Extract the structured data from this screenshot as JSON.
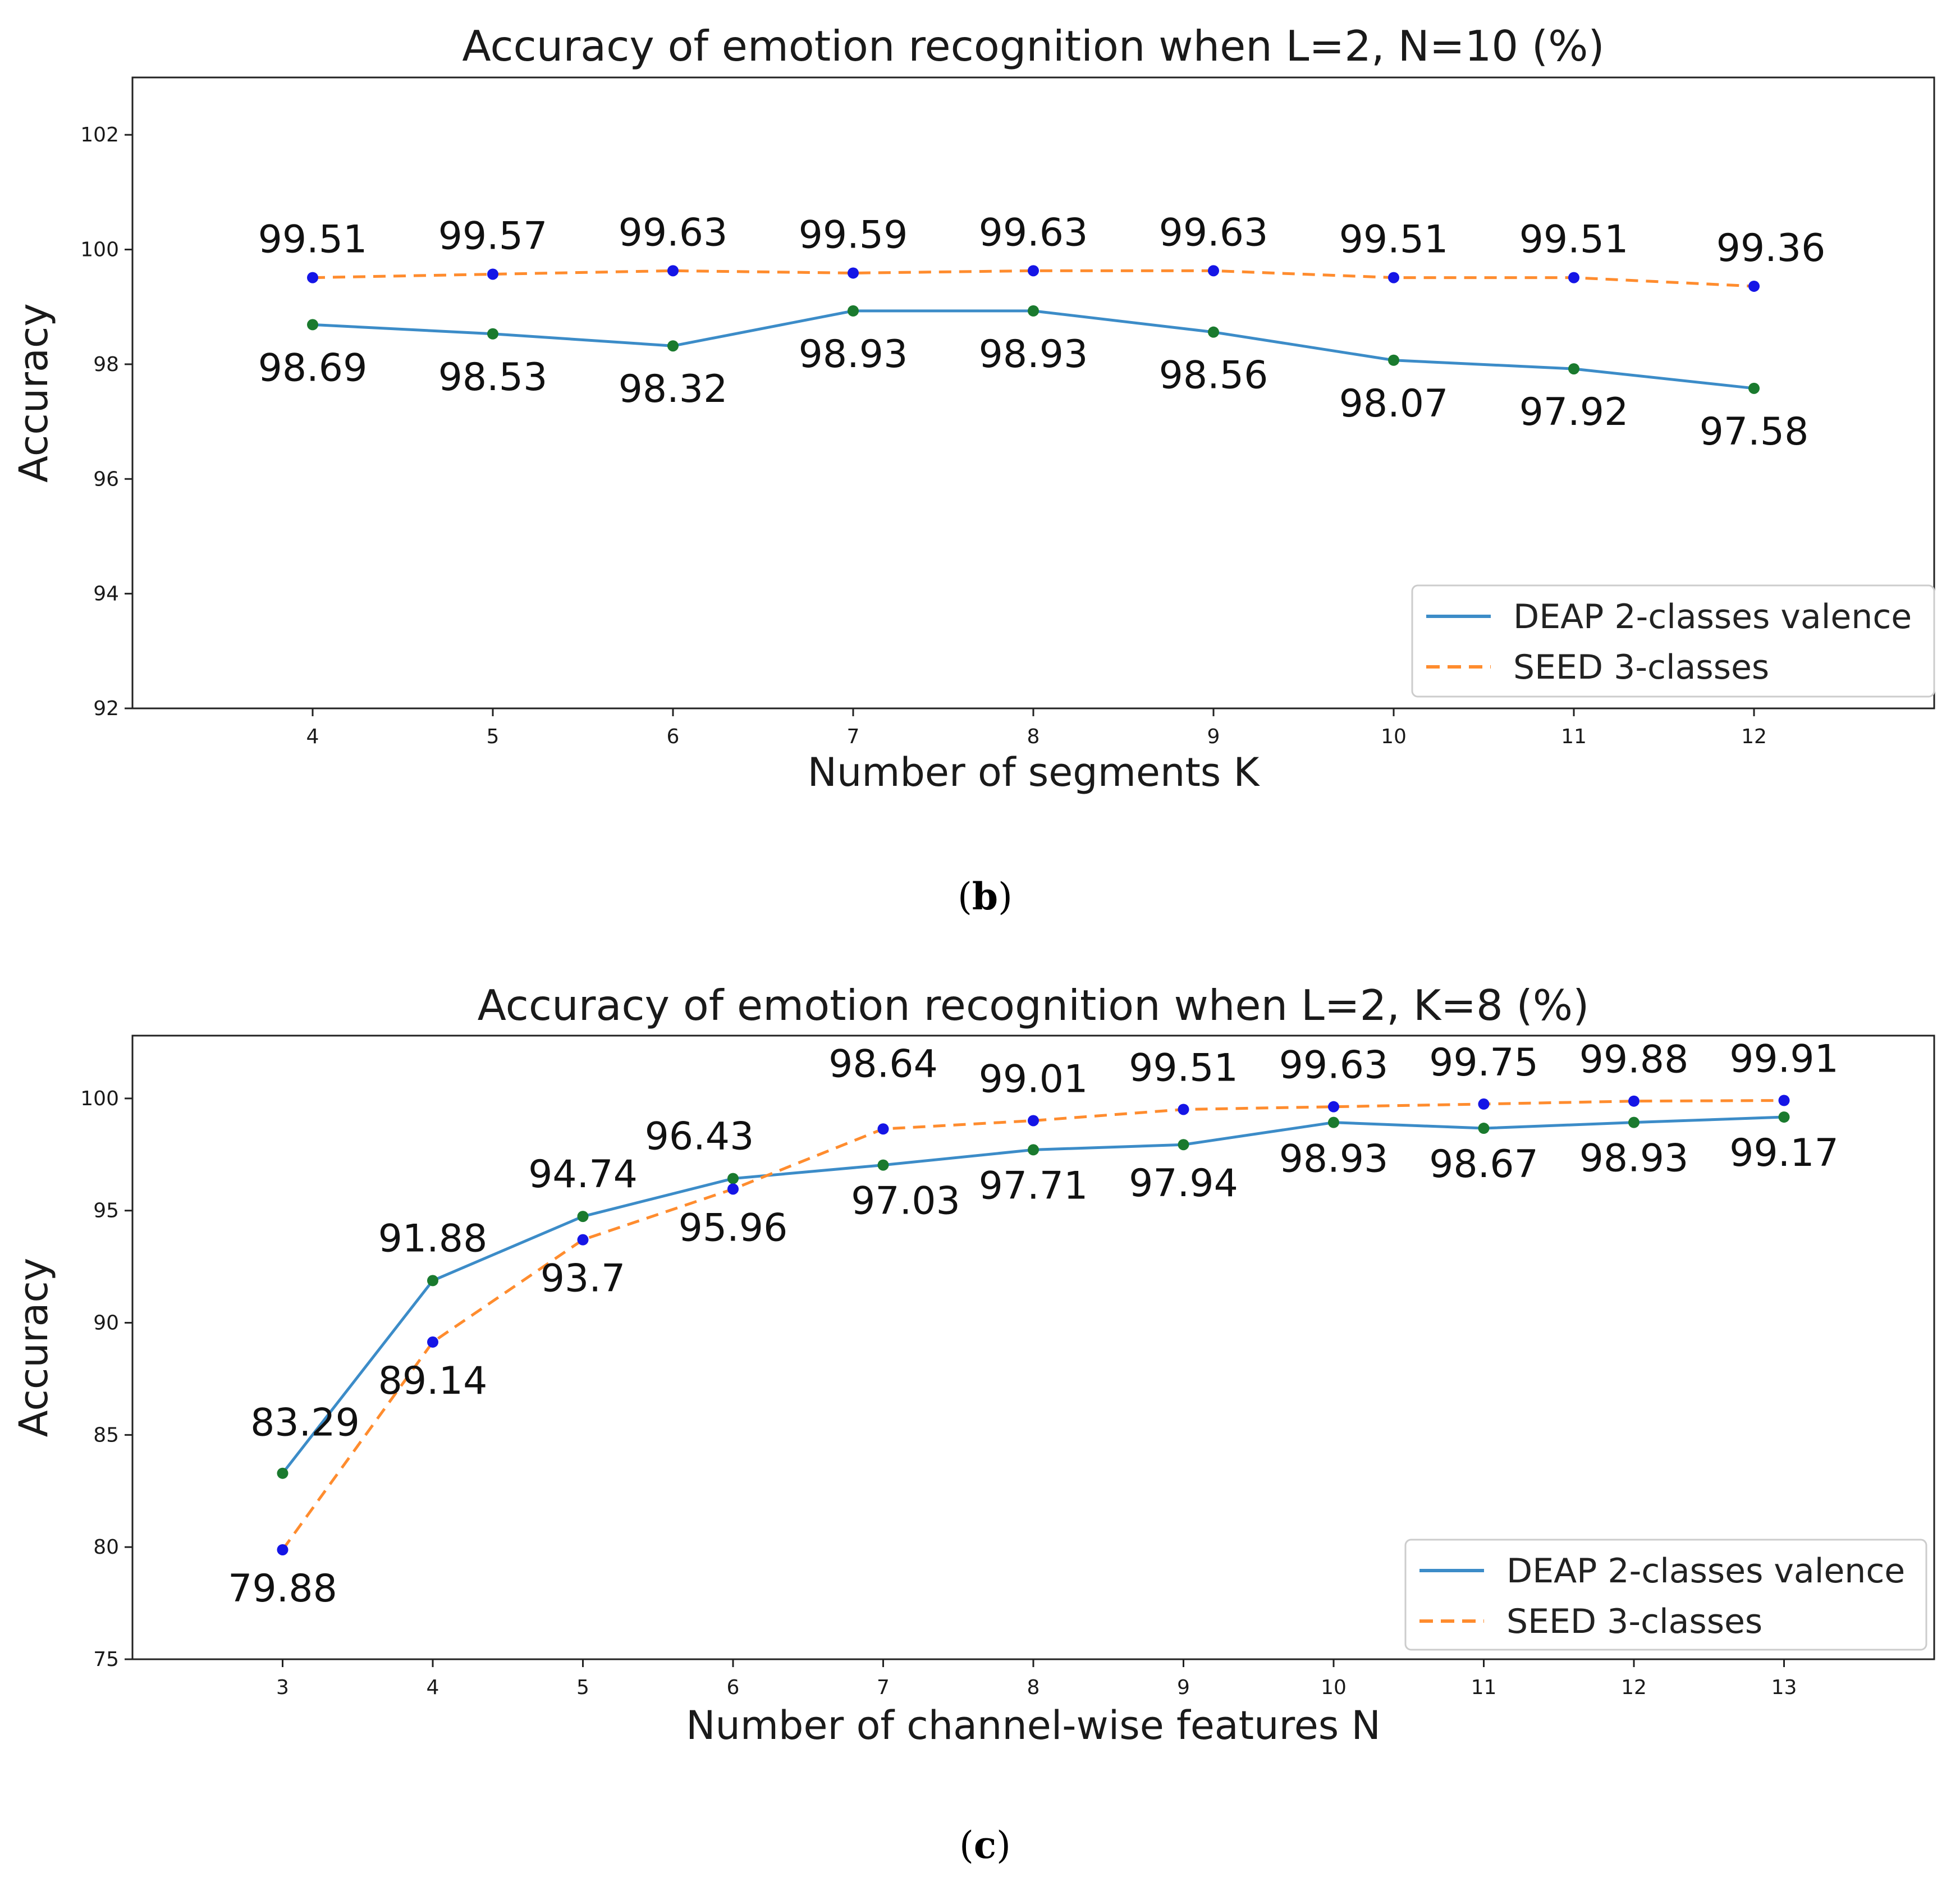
{
  "colors": {
    "deap": "#3c8cc8",
    "seed": "#ff8c2e",
    "seed_marker": "#1515e6",
    "deap_marker": "#1a7a2e"
  },
  "chart_data": [
    {
      "type": "line",
      "title": "Accuracy of emotion recognition when L=2, N=10 (%)",
      "xlabel": "Number of segments K",
      "ylabel": "Accuracy",
      "caption": "b",
      "x": [
        4,
        5,
        6,
        7,
        8,
        9,
        10,
        11,
        12
      ],
      "xlim": [
        3,
        13
      ],
      "ylim": [
        92,
        103
      ],
      "yticks": [
        92,
        94,
        96,
        98,
        100,
        102
      ],
      "xticks": [
        4,
        5,
        6,
        7,
        8,
        9,
        10,
        11,
        12
      ],
      "legend": "lower-right",
      "series": [
        {
          "name": "DEAP 2-classes valence",
          "style": "solid",
          "values": [
            98.69,
            98.53,
            98.32,
            98.93,
            98.93,
            98.56,
            98.07,
            97.92,
            97.58
          ],
          "labels": [
            "98.69",
            "98.53",
            "98.32",
            "98.93",
            "98.93",
            "98.56",
            "98.07",
            "97.92",
            "97.58"
          ]
        },
        {
          "name": "SEED 3-classes",
          "style": "dashed",
          "values": [
            99.51,
            99.57,
            99.63,
            99.59,
            99.63,
            99.63,
            99.51,
            99.51,
            99.36
          ],
          "labels": [
            "99.51",
            "99.57",
            "99.63",
            "99.59",
            "99.63",
            "99.63",
            "99.51",
            "99.51",
            "99.36"
          ]
        }
      ]
    },
    {
      "type": "line",
      "title": "Accuracy of emotion recognition when L=2, K=8 (%)",
      "xlabel": "Number of channel-wise features N",
      "ylabel": "Accuracy",
      "caption": "c",
      "x": [
        3,
        4,
        5,
        6,
        7,
        8,
        9,
        10,
        11,
        12,
        13
      ],
      "xlim": [
        2,
        14
      ],
      "ylim": [
        75,
        102.8
      ],
      "yticks": [
        75,
        80,
        85,
        90,
        95,
        100
      ],
      "xticks": [
        3,
        4,
        5,
        6,
        7,
        8,
        9,
        10,
        11,
        12,
        13
      ],
      "legend": "lower-right",
      "series": [
        {
          "name": "DEAP 2-classes valence",
          "style": "solid",
          "values": [
            83.29,
            91.88,
            94.74,
            96.43,
            97.03,
            97.71,
            97.94,
            98.93,
            98.67,
            98.93,
            99.17
          ],
          "labels": [
            "83.29",
            "91.88",
            "94.74",
            "96.43",
            "97.03",
            "97.71",
            "97.94",
            "98.93",
            "98.67",
            "98.93",
            "99.17"
          ]
        },
        {
          "name": "SEED 3-classes",
          "style": "dashed",
          "values": [
            79.88,
            89.14,
            93.7,
            95.96,
            98.64,
            99.01,
            99.51,
            99.63,
            99.75,
            99.88,
            99.91
          ],
          "labels": [
            "79.88",
            "89.14",
            "93.7",
            "95.96",
            "98.64",
            "99.01",
            "99.51",
            "99.63",
            "99.75",
            "99.88",
            "99.91"
          ]
        }
      ]
    }
  ]
}
